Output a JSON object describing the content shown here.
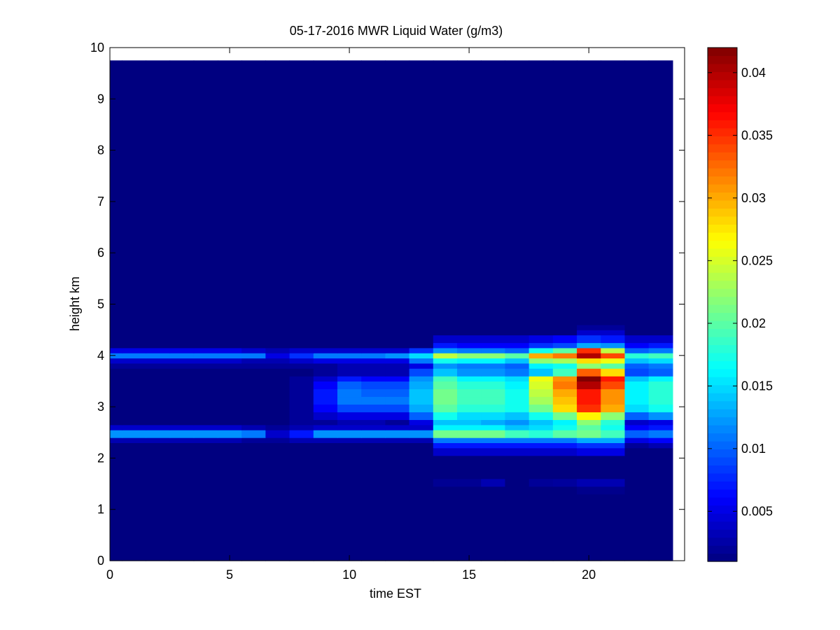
{
  "chart_data": {
    "type": "heatmap",
    "title": "05-17-2016 MWR Liquid Water (g/m3)",
    "xlabel": "time EST",
    "ylabel": "height km",
    "xlim": [
      0,
      24
    ],
    "ylim": [
      0,
      10
    ],
    "x_ticks": [
      0,
      5,
      10,
      15,
      20
    ],
    "y_ticks": [
      0,
      1,
      2,
      3,
      4,
      5,
      6,
      7,
      8,
      9,
      10
    ],
    "colorbar": {
      "colormap": "jet",
      "clim": [
        0.001,
        0.042
      ],
      "ticks": [
        0.005,
        0.01,
        0.015,
        0.02,
        0.025,
        0.03,
        0.035,
        0.04
      ],
      "tick_labels": [
        "0.005",
        "0.01",
        "0.015",
        "0.02",
        "0.025",
        "0.03",
        "0.035",
        "0.04"
      ]
    },
    "time_hours": [
      0,
      1,
      2,
      3,
      4,
      5,
      6,
      7,
      8,
      9,
      10,
      11,
      12,
      13,
      14,
      15,
      16,
      17,
      18,
      19,
      20,
      21,
      22,
      23
    ],
    "height_rows_km": [
      {
        "y0": 0.0,
        "y1": 1.3,
        "values": [
          0.001,
          0.001,
          0.001,
          0.001,
          0.001,
          0.001,
          0.001,
          0.001,
          0.001,
          0.001,
          0.001,
          0.001,
          0.001,
          0.001,
          0.001,
          0.001,
          0.001,
          0.001,
          0.001,
          0.001,
          0.001,
          0.001,
          0.001,
          0.001
        ]
      },
      {
        "y0": 1.3,
        "y1": 1.45,
        "values": [
          0.001,
          0.001,
          0.001,
          0.001,
          0.001,
          0.001,
          0.001,
          0.001,
          0.001,
          0.001,
          0.001,
          0.001,
          0.001,
          0.001,
          0.001,
          0.001,
          0.001,
          0.001,
          0.001,
          0.001,
          0.0015,
          0.0015,
          0.001,
          0.001
        ]
      },
      {
        "y0": 1.45,
        "y1": 1.6,
        "values": [
          0.001,
          0.001,
          0.001,
          0.001,
          0.001,
          0.001,
          0.001,
          0.001,
          0.001,
          0.001,
          0.001,
          0.001,
          0.001,
          0.001,
          0.0018,
          0.0018,
          0.003,
          0.001,
          0.002,
          0.0022,
          0.003,
          0.003,
          0.001,
          0.001
        ]
      },
      {
        "y0": 1.6,
        "y1": 2.05,
        "values": [
          0.001,
          0.001,
          0.001,
          0.001,
          0.001,
          0.001,
          0.001,
          0.001,
          0.001,
          0.001,
          0.001,
          0.001,
          0.001,
          0.001,
          0.001,
          0.001,
          0.001,
          0.001,
          0.001,
          0.001,
          0.001,
          0.001,
          0.001,
          0.001
        ]
      },
      {
        "y0": 2.05,
        "y1": 2.2,
        "values": [
          0.001,
          0.001,
          0.001,
          0.001,
          0.001,
          0.001,
          0.001,
          0.001,
          0.001,
          0.001,
          0.001,
          0.001,
          0.001,
          0.001,
          0.004,
          0.004,
          0.004,
          0.004,
          0.004,
          0.004,
          0.005,
          0.005,
          0.001,
          0.001
        ]
      },
      {
        "y0": 2.2,
        "y1": 2.3,
        "values": [
          0.001,
          0.001,
          0.001,
          0.001,
          0.001,
          0.001,
          0.001,
          0.001,
          0.001,
          0.001,
          0.001,
          0.001,
          0.001,
          0.001,
          0.007,
          0.007,
          0.007,
          0.007,
          0.007,
          0.007,
          0.008,
          0.008,
          0.002,
          0.003
        ]
      },
      {
        "y0": 2.3,
        "y1": 2.4,
        "values": [
          0.003,
          0.003,
          0.003,
          0.003,
          0.003,
          0.003,
          0.002,
          0.002,
          0.003,
          0.003,
          0.003,
          0.003,
          0.003,
          0.003,
          0.011,
          0.011,
          0.011,
          0.011,
          0.011,
          0.011,
          0.013,
          0.013,
          0.005,
          0.006
        ]
      },
      {
        "y0": 2.4,
        "y1": 2.55,
        "values": [
          0.012,
          0.012,
          0.012,
          0.012,
          0.012,
          0.012,
          0.011,
          0.004,
          0.007,
          0.012,
          0.012,
          0.012,
          0.012,
          0.012,
          0.021,
          0.021,
          0.021,
          0.019,
          0.018,
          0.02,
          0.021,
          0.019,
          0.01,
          0.011
        ]
      },
      {
        "y0": 2.55,
        "y1": 2.65,
        "values": [
          0.004,
          0.004,
          0.004,
          0.004,
          0.004,
          0.004,
          0.003,
          0.002,
          0.003,
          0.004,
          0.004,
          0.004,
          0.004,
          0.004,
          0.016,
          0.016,
          0.016,
          0.014,
          0.015,
          0.017,
          0.02,
          0.017,
          0.006,
          0.007
        ]
      },
      {
        "y0": 2.65,
        "y1": 2.75,
        "values": [
          0.001,
          0.001,
          0.001,
          0.001,
          0.001,
          0.001,
          0.001,
          0.001,
          0.002,
          0.002,
          0.003,
          0.003,
          0.002,
          0.005,
          0.014,
          0.014,
          0.013,
          0.012,
          0.014,
          0.016,
          0.022,
          0.018,
          0.004,
          0.005
        ]
      },
      {
        "y0": 2.75,
        "y1": 2.9,
        "values": [
          0.001,
          0.001,
          0.001,
          0.001,
          0.001,
          0.001,
          0.001,
          0.001,
          0.002,
          0.004,
          0.005,
          0.005,
          0.005,
          0.01,
          0.017,
          0.015,
          0.015,
          0.014,
          0.017,
          0.021,
          0.027,
          0.022,
          0.01,
          0.012
        ]
      },
      {
        "y0": 2.9,
        "y1": 3.05,
        "values": [
          0.001,
          0.001,
          0.001,
          0.001,
          0.001,
          0.001,
          0.001,
          0.001,
          0.002,
          0.006,
          0.009,
          0.009,
          0.009,
          0.013,
          0.02,
          0.018,
          0.018,
          0.017,
          0.021,
          0.028,
          0.035,
          0.03,
          0.015,
          0.017
        ]
      },
      {
        "y0": 3.05,
        "y1": 3.2,
        "values": [
          0.001,
          0.001,
          0.001,
          0.001,
          0.001,
          0.001,
          0.001,
          0.001,
          0.002,
          0.007,
          0.011,
          0.011,
          0.011,
          0.014,
          0.021,
          0.019,
          0.019,
          0.017,
          0.023,
          0.029,
          0.036,
          0.031,
          0.016,
          0.018
        ]
      },
      {
        "y0": 3.2,
        "y1": 3.35,
        "values": [
          0.001,
          0.001,
          0.001,
          0.001,
          0.001,
          0.001,
          0.001,
          0.001,
          0.002,
          0.007,
          0.011,
          0.01,
          0.01,
          0.014,
          0.021,
          0.019,
          0.019,
          0.017,
          0.024,
          0.03,
          0.036,
          0.031,
          0.016,
          0.018
        ]
      },
      {
        "y0": 3.35,
        "y1": 3.5,
        "values": [
          0.001,
          0.001,
          0.001,
          0.001,
          0.001,
          0.001,
          0.001,
          0.001,
          0.002,
          0.006,
          0.01,
          0.009,
          0.009,
          0.013,
          0.02,
          0.018,
          0.018,
          0.016,
          0.025,
          0.032,
          0.04,
          0.034,
          0.016,
          0.018
        ]
      },
      {
        "y0": 3.5,
        "y1": 3.6,
        "values": [
          0.001,
          0.001,
          0.001,
          0.001,
          0.001,
          0.001,
          0.001,
          0.001,
          0.002,
          0.004,
          0.007,
          0.006,
          0.006,
          0.012,
          0.019,
          0.016,
          0.016,
          0.015,
          0.026,
          0.031,
          0.042,
          0.036,
          0.014,
          0.016
        ]
      },
      {
        "y0": 3.6,
        "y1": 3.75,
        "values": [
          0.001,
          0.001,
          0.001,
          0.001,
          0.001,
          0.001,
          0.001,
          0.001,
          0.001,
          0.002,
          0.003,
          0.003,
          0.003,
          0.009,
          0.014,
          0.012,
          0.012,
          0.011,
          0.014,
          0.019,
          0.033,
          0.028,
          0.009,
          0.01
        ]
      },
      {
        "y0": 3.75,
        "y1": 3.85,
        "values": [
          0.002,
          0.002,
          0.002,
          0.002,
          0.002,
          0.002,
          0.002,
          0.002,
          0.002,
          0.002,
          0.003,
          0.003,
          0.003,
          0.005,
          0.012,
          0.011,
          0.011,
          0.01,
          0.016,
          0.017,
          0.022,
          0.02,
          0.01,
          0.011
        ]
      },
      {
        "y0": 3.85,
        "y1": 3.95,
        "values": [
          0.004,
          0.004,
          0.004,
          0.004,
          0.004,
          0.004,
          0.003,
          0.003,
          0.004,
          0.005,
          0.005,
          0.005,
          0.005,
          0.011,
          0.017,
          0.016,
          0.016,
          0.014,
          0.022,
          0.023,
          0.028,
          0.026,
          0.014,
          0.015
        ]
      },
      {
        "y0": 3.95,
        "y1": 4.05,
        "values": [
          0.011,
          0.011,
          0.011,
          0.011,
          0.011,
          0.011,
          0.011,
          0.005,
          0.008,
          0.011,
          0.011,
          0.011,
          0.012,
          0.015,
          0.024,
          0.022,
          0.022,
          0.02,
          0.03,
          0.032,
          0.04,
          0.034,
          0.018,
          0.019
        ]
      },
      {
        "y0": 4.05,
        "y1": 4.15,
        "values": [
          0.005,
          0.005,
          0.005,
          0.005,
          0.005,
          0.005,
          0.004,
          0.003,
          0.004,
          0.004,
          0.004,
          0.004,
          0.004,
          0.008,
          0.012,
          0.011,
          0.011,
          0.01,
          0.017,
          0.02,
          0.035,
          0.024,
          0.01,
          0.011
        ]
      },
      {
        "y0": 4.15,
        "y1": 4.25,
        "values": [
          0.001,
          0.001,
          0.001,
          0.001,
          0.001,
          0.001,
          0.001,
          0.001,
          0.001,
          0.001,
          0.001,
          0.001,
          0.001,
          0.001,
          0.007,
          0.006,
          0.006,
          0.006,
          0.008,
          0.009,
          0.013,
          0.012,
          0.006,
          0.007
        ]
      },
      {
        "y0": 4.25,
        "y1": 4.4,
        "values": [
          0.001,
          0.001,
          0.001,
          0.001,
          0.001,
          0.001,
          0.001,
          0.001,
          0.001,
          0.001,
          0.001,
          0.001,
          0.001,
          0.001,
          0.004,
          0.004,
          0.004,
          0.004,
          0.005,
          0.006,
          0.008,
          0.007,
          0.004,
          0.004
        ]
      },
      {
        "y0": 4.4,
        "y1": 4.5,
        "values": [
          0.001,
          0.001,
          0.001,
          0.001,
          0.001,
          0.001,
          0.001,
          0.001,
          0.001,
          0.001,
          0.001,
          0.001,
          0.001,
          0.001,
          0.001,
          0.001,
          0.001,
          0.001,
          0.001,
          0.001,
          0.004,
          0.004,
          0.001,
          0.001
        ]
      },
      {
        "y0": 4.5,
        "y1": 4.6,
        "values": [
          0.001,
          0.001,
          0.001,
          0.001,
          0.001,
          0.001,
          0.001,
          0.001,
          0.001,
          0.001,
          0.001,
          0.001,
          0.001,
          0.001,
          0.001,
          0.001,
          0.001,
          0.001,
          0.001,
          0.001,
          0.002,
          0.002,
          0.001,
          0.001
        ]
      },
      {
        "y0": 4.6,
        "y1": 9.75,
        "values": [
          0.001,
          0.001,
          0.001,
          0.001,
          0.001,
          0.001,
          0.001,
          0.001,
          0.001,
          0.001,
          0.001,
          0.001,
          0.001,
          0.001,
          0.001,
          0.001,
          0.001,
          0.001,
          0.001,
          0.001,
          0.001,
          0.001,
          0.001,
          0.001
        ]
      }
    ]
  }
}
